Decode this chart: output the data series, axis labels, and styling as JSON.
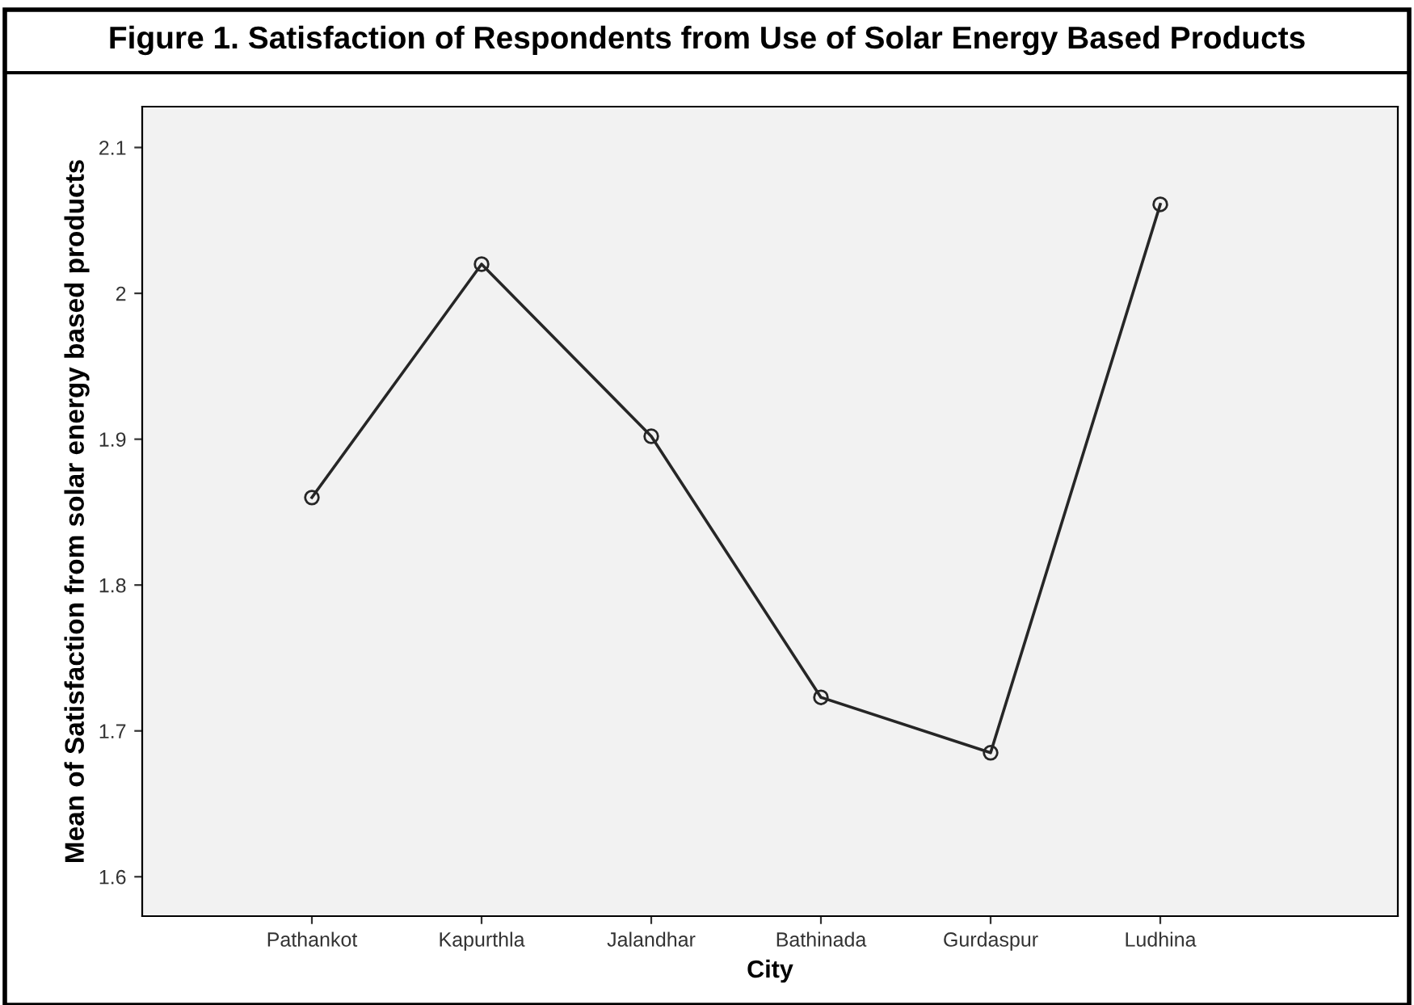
{
  "chart_data": {
    "type": "line",
    "title": "Figure 1. Satisfaction of Respondents from Use of Solar Energy Based Products",
    "xlabel": "City",
    "ylabel": "Mean of Satisfaction from solar energy based products",
    "categories": [
      "Pathankot",
      "Kapurthla",
      "Jalandhar",
      "Bathinada",
      "Gurdaspur",
      "Ludhina"
    ],
    "series": [
      {
        "color": "#262626",
        "values": [
          1.86,
          2.02,
          1.902,
          1.723,
          1.685,
          2.061
        ]
      }
    ],
    "ylim": [
      1.573,
      2.128
    ],
    "yticks": [
      {
        "value": 1.6,
        "label": "1.6"
      },
      {
        "value": 1.7,
        "label": "1.7"
      },
      {
        "value": 1.8,
        "label": "1.8"
      },
      {
        "value": 1.9,
        "label": "1.9"
      },
      {
        "value": 2.0,
        "label": "2"
      },
      {
        "value": 2.1,
        "label": "2.1"
      }
    ],
    "grid": false,
    "legend": false,
    "marker": "circle",
    "line_style": "solid"
  }
}
